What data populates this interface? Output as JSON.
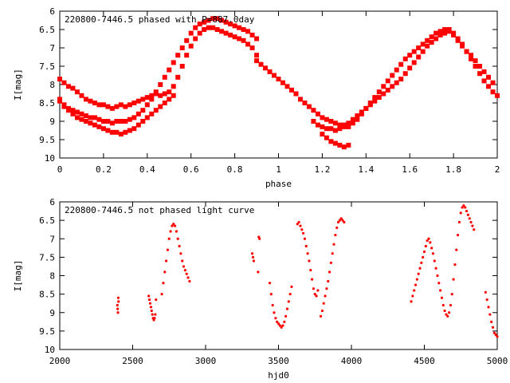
{
  "chart_data": [
    {
      "type": "scatter",
      "title": "220800-7446.5 phased with P=887.0day",
      "xlabel": "phase",
      "ylabel": "I[mag]",
      "xlim": [
        0,
        2
      ],
      "ylim": [
        6,
        10
      ],
      "y_inverted": true,
      "grid": false,
      "x_ticks": [
        "0",
        "0.2",
        "0.4",
        "0.6",
        "0.8",
        "1",
        "1.2",
        "1.4",
        "1.6",
        "1.8",
        "2"
      ],
      "y_ticks": [
        "6",
        "6.5",
        "7",
        "7.5",
        "8",
        "8.5",
        "9",
        "9.5",
        "10"
      ],
      "marker": "filled-cross",
      "color": "#ff0000",
      "series": [
        {
          "x": [
            0.0,
            0.02,
            0.04,
            0.06,
            0.08,
            0.1,
            0.12,
            0.14,
            0.16,
            0.18,
            0.2,
            0.22,
            0.24,
            0.26,
            0.28,
            0.3,
            0.32,
            0.34,
            0.36,
            0.38,
            0.4,
            0.42,
            0.44,
            0.46,
            0.48,
            0.5,
            0.52,
            0.54,
            0.56,
            0.58,
            0.6,
            0.62,
            0.64,
            0.66,
            0.68,
            0.7,
            0.72,
            0.74,
            0.76,
            0.78,
            0.8,
            0.82,
            0.84,
            0.86,
            0.88,
            0.9,
            0.0,
            0.02,
            0.04,
            0.06,
            0.08,
            0.1,
            0.12,
            0.14,
            0.16,
            0.18,
            0.2,
            0.22,
            0.24,
            0.26,
            0.28,
            0.3,
            0.32,
            0.34,
            0.36,
            0.38,
            0.4,
            0.42,
            0.44,
            0.46,
            0.48,
            0.5,
            0.52,
            0.54,
            0.56,
            0.58,
            0.6,
            0.62,
            0.64,
            0.66,
            0.68,
            0.7,
            0.72,
            0.74,
            0.76,
            0.78,
            0.8,
            0.82,
            0.84,
            0.86,
            0.88,
            0.9,
            0.0,
            0.02,
            0.04,
            0.06,
            0.08,
            0.1,
            0.12,
            0.14,
            0.16,
            0.18,
            0.2,
            0.22,
            0.24,
            0.26,
            0.28,
            0.3,
            0.32,
            0.34,
            0.36,
            0.38,
            0.4,
            0.42,
            0.44,
            0.46,
            0.48,
            0.5,
            0.52,
            0.9,
            0.92,
            0.94,
            0.96,
            0.98,
            1.0,
            1.02,
            1.04,
            1.06,
            1.08,
            1.1,
            1.12,
            1.14,
            1.16,
            1.18,
            1.2,
            1.22,
            1.24,
            1.26,
            1.28,
            1.3,
            1.32,
            1.34,
            1.36,
            1.38,
            1.4,
            1.42,
            1.44,
            1.46,
            1.48,
            1.5,
            1.52,
            1.54,
            1.56,
            1.58,
            1.6,
            1.62,
            1.64,
            1.66,
            1.68,
            1.7,
            1.72,
            1.74,
            1.76,
            1.78,
            1.8,
            1.82,
            1.84,
            1.86,
            1.88,
            1.9,
            1.92,
            1.94,
            1.96,
            1.98,
            2.0,
            1.16,
            1.18,
            1.2,
            1.22,
            1.24,
            1.26,
            1.28,
            1.3,
            1.32,
            1.34,
            1.36,
            1.38,
            1.4,
            1.42,
            1.44,
            1.46,
            1.48,
            1.5,
            1.52,
            1.54,
            1.56,
            1.58,
            1.6,
            1.62,
            1.64,
            1.66,
            1.68,
            1.7,
            1.72,
            1.74,
            1.76,
            1.78,
            1.8,
            1.82,
            1.84,
            1.86,
            1.88,
            1.9,
            1.92,
            1.94,
            1.96,
            1.98,
            1.2,
            1.22,
            1.24,
            1.26,
            1.28,
            1.3,
            1.32
          ],
          "y": [
            7.85,
            7.95,
            8.05,
            8.1,
            8.2,
            8.3,
            8.4,
            8.45,
            8.5,
            8.55,
            8.55,
            8.6,
            8.65,
            8.6,
            8.55,
            8.6,
            8.55,
            8.5,
            8.45,
            8.4,
            8.35,
            8.3,
            8.25,
            8.3,
            8.25,
            8.2,
            8.05,
            7.8,
            7.5,
            7.2,
            6.95,
            6.75,
            6.6,
            6.5,
            6.45,
            6.45,
            6.5,
            6.55,
            6.6,
            6.65,
            6.7,
            6.75,
            6.8,
            6.9,
            7.0,
            7.2,
            8.4,
            8.55,
            8.65,
            8.7,
            8.75,
            8.8,
            8.85,
            8.9,
            8.9,
            8.95,
            9.0,
            9.0,
            9.05,
            9.0,
            9.0,
            9.0,
            8.95,
            8.9,
            8.8,
            8.7,
            8.55,
            8.4,
            8.2,
            8.0,
            7.8,
            7.6,
            7.4,
            7.2,
            7.0,
            6.8,
            6.6,
            6.45,
            6.35,
            6.3,
            6.25,
            6.2,
            6.2,
            6.25,
            6.3,
            6.35,
            6.4,
            6.45,
            6.5,
            6.55,
            6.65,
            6.75,
            8.45,
            8.6,
            8.7,
            8.8,
            8.9,
            8.95,
            9.0,
            9.05,
            9.1,
            9.15,
            9.2,
            9.25,
            9.3,
            9.3,
            9.35,
            9.3,
            9.25,
            9.2,
            9.1,
            9.0,
            8.9,
            8.8,
            8.7,
            8.6,
            8.5,
            8.4,
            8.3,
            7.35,
            7.45,
            7.55,
            7.65,
            7.75,
            7.85,
            7.95,
            8.05,
            8.15,
            8.25,
            8.4,
            8.5,
            8.6,
            8.7,
            8.8,
            8.9,
            8.95,
            9.0,
            9.05,
            9.1,
            9.1,
            9.15,
            9.05,
            8.95,
            8.8,
            8.65,
            8.5,
            8.35,
            8.2,
            8.05,
            7.9,
            7.75,
            7.6,
            7.45,
            7.3,
            7.2,
            7.1,
            7.0,
            6.9,
            6.8,
            6.7,
            6.6,
            6.55,
            6.5,
            6.5,
            6.6,
            6.75,
            6.9,
            7.1,
            7.3,
            7.5,
            7.7,
            7.9,
            8.05,
            8.2,
            8.3,
            9.0,
            9.1,
            9.15,
            9.2,
            9.2,
            9.25,
            9.2,
            9.15,
            9.05,
            8.95,
            8.85,
            8.75,
            8.65,
            8.55,
            8.45,
            8.35,
            8.25,
            8.15,
            8.05,
            7.95,
            7.85,
            7.7,
            7.55,
            7.4,
            7.25,
            7.1,
            6.95,
            6.85,
            6.75,
            6.65,
            6.6,
            6.55,
            6.65,
            6.8,
            6.95,
            7.1,
            7.2,
            7.35,
            7.5,
            7.65,
            7.8,
            7.95,
            9.35,
            9.45,
            9.55,
            9.6,
            9.65,
            9.7,
            9.65
          ]
        }
      ]
    },
    {
      "type": "scatter",
      "title": "220800-7446.5 not phased light curve",
      "xlabel": "hjd0",
      "ylabel": "I[mag]",
      "xlim": [
        2000,
        5000
      ],
      "ylim": [
        6,
        10
      ],
      "y_inverted": true,
      "grid": false,
      "x_ticks": [
        "2000",
        "2500",
        "3000",
        "3500",
        "4000",
        "4500",
        "5000"
      ],
      "y_ticks": [
        "6",
        "6.5",
        "7",
        "7.5",
        "8",
        "8.5",
        "9",
        "9.5",
        "10"
      ],
      "marker": "dot",
      "color": "#ff0000",
      "series": [
        {
          "x": [
            2395,
            2397,
            2399,
            2401,
            2403,
            2610,
            2615,
            2620,
            2625,
            2630,
            2635,
            2640,
            2645,
            2650,
            2655,
            2660,
            2700,
            2710,
            2720,
            2730,
            2740,
            2750,
            2760,
            2770,
            2780,
            2790,
            2800,
            2810,
            2820,
            2830,
            2840,
            2850,
            2860,
            2870,
            2880,
            2890,
            3320,
            3325,
            3330,
            3360,
            3365,
            3370,
            3440,
            3450,
            3460,
            3470,
            3480,
            3490,
            3500,
            3510,
            3520,
            3530,
            3540,
            3550,
            3560,
            3570,
            3580,
            3590,
            3630,
            3640,
            3650,
            3660,
            3670,
            3680,
            3690,
            3700,
            3710,
            3720,
            3730,
            3740,
            3750,
            3760,
            3770,
            3790,
            3800,
            3810,
            3820,
            3830,
            3840,
            3850,
            3860,
            3870,
            3880,
            3890,
            3900,
            3910,
            3920,
            3930,
            3940,
            3950,
            4410,
            4420,
            4430,
            4440,
            4450,
            4460,
            4470,
            4480,
            4490,
            4500,
            4510,
            4520,
            4530,
            4540,
            4550,
            4560,
            4570,
            4580,
            4590,
            4600,
            4610,
            4620,
            4630,
            4640,
            4650,
            4660,
            4670,
            4680,
            4690,
            4700,
            4710,
            4720,
            4730,
            4740,
            4750,
            4760,
            4770,
            4780,
            4790,
            4800,
            4810,
            4820,
            4830,
            4840,
            4920,
            4930,
            4940,
            4950,
            4960,
            4970,
            4980,
            4990,
            5000
          ],
          "y": [
            8.8,
            8.9,
            9.0,
            8.6,
            8.7,
            8.55,
            8.65,
            8.75,
            8.85,
            8.95,
            9.05,
            9.15,
            9.2,
            9.15,
            9.05,
            8.65,
            8.5,
            8.2,
            7.9,
            7.6,
            7.3,
            7.0,
            6.8,
            6.65,
            6.6,
            6.65,
            6.8,
            7.0,
            7.2,
            7.4,
            7.6,
            7.75,
            7.85,
            7.95,
            8.05,
            8.15,
            7.4,
            7.5,
            7.6,
            7.9,
            6.95,
            7.0,
            8.2,
            8.5,
            8.8,
            9.0,
            9.15,
            9.25,
            9.3,
            9.35,
            9.4,
            9.35,
            9.25,
            9.1,
            8.9,
            8.7,
            8.5,
            8.3,
            6.6,
            6.55,
            6.65,
            6.75,
            6.85,
            7.0,
            7.2,
            7.4,
            7.6,
            7.85,
            8.1,
            8.35,
            8.5,
            8.55,
            8.4,
            9.1,
            8.95,
            8.75,
            8.55,
            8.35,
            8.15,
            7.9,
            7.65,
            7.4,
            7.15,
            6.9,
            6.7,
            6.55,
            6.5,
            6.45,
            6.5,
            6.55,
            8.7,
            8.55,
            8.4,
            8.25,
            8.1,
            7.95,
            7.8,
            7.65,
            7.5,
            7.35,
            7.2,
            7.05,
            7.0,
            7.1,
            7.25,
            7.4,
            7.6,
            7.8,
            8.0,
            8.2,
            8.4,
            8.6,
            8.8,
            8.95,
            9.05,
            9.1,
            9.0,
            8.8,
            8.5,
            8.1,
            7.7,
            7.3,
            6.9,
            6.55,
            6.3,
            6.15,
            6.1,
            6.15,
            6.25,
            6.35,
            6.45,
            6.55,
            6.65,
            6.75,
            8.45,
            8.65,
            8.85,
            9.05,
            9.25,
            9.4,
            9.55,
            9.6,
            9.65
          ]
        }
      ]
    }
  ]
}
